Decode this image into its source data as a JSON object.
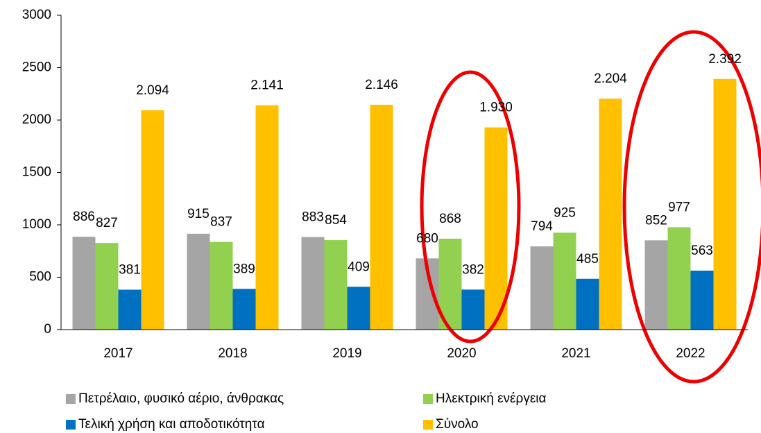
{
  "chart_data": {
    "type": "bar",
    "categories": [
      "2017",
      "2018",
      "2019",
      "2020",
      "2021",
      "2022"
    ],
    "series": [
      {
        "name": "Πετρέλαιο, φυσικό αέριο, άνθρακας",
        "color": "#a5a5a5",
        "values": [
          886,
          915,
          883,
          680,
          794,
          852
        ]
      },
      {
        "name": "Ηλεκτρική ενέργεια",
        "color": "#92d050",
        "values": [
          827,
          837,
          854,
          868,
          925,
          977
        ]
      },
      {
        "name": "Τελική χρήση και αποδοτικότητα",
        "color": "#0070c0",
        "values": [
          381,
          389,
          409,
          382,
          485,
          563
        ]
      },
      {
        "name": "Σύνολο",
        "color": "#ffc000",
        "values": [
          2094,
          2141,
          2146,
          1930,
          2204,
          2392
        ],
        "value_labels": [
          "2.094",
          "2.141",
          "2.146",
          "1.930",
          "2.204",
          "2.392"
        ]
      }
    ],
    "ylim": [
      0,
      3000
    ],
    "yticks": [
      0,
      500,
      1000,
      1500,
      2000,
      2500,
      3000
    ],
    "grid": false,
    "legend": "bottom"
  }
}
